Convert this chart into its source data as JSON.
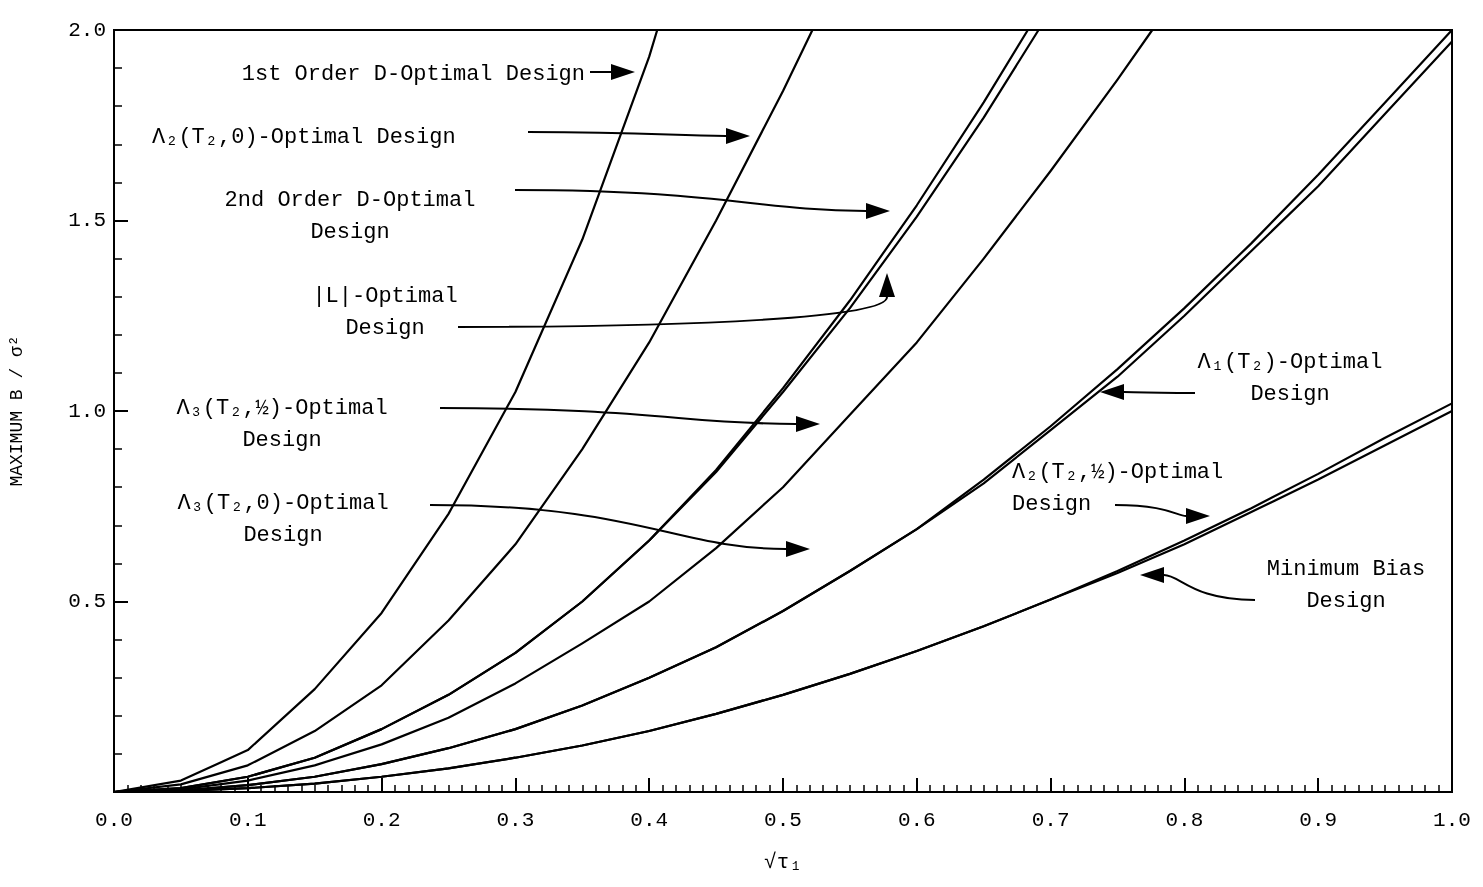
{
  "chart_data": {
    "type": "line",
    "xlabel": "√τ₁",
    "ylabel": "MAXIMUM B / σ²",
    "xlim": [
      0,
      1
    ],
    "ylim": [
      0,
      2
    ],
    "xticks": [
      {
        "value": 0,
        "label": "0.0"
      },
      0.1,
      0.2,
      0.3,
      0.4,
      0.5,
      0.6,
      0.7,
      0.8,
      0.9,
      {
        "value": 1,
        "label": "1.0"
      }
    ],
    "yticks": [
      {
        "value": 0,
        "label": null
      },
      0.5,
      {
        "value": 1,
        "label": "1.0"
      },
      1.5,
      {
        "value": 2,
        "label": "2.0"
      }
    ],
    "marker": "none",
    "line_style": "solid",
    "series": [
      {
        "color": "#000000",
        "x": [
          0,
          0.05,
          0.1,
          0.15,
          0.2,
          0.25,
          0.3,
          0.35,
          0.4,
          0.406
        ],
        "values": [
          0,
          0.03,
          0.11,
          0.27,
          0.47,
          0.73,
          1.05,
          1.45,
          1.93,
          2.0
        ]
      },
      {
        "color": "#000000",
        "x": [
          0,
          0.05,
          0.1,
          0.15,
          0.2,
          0.25,
          0.3,
          0.35,
          0.4,
          0.45,
          0.5,
          0.522
        ],
        "values": [
          0,
          0.02,
          0.07,
          0.16,
          0.28,
          0.45,
          0.65,
          0.9,
          1.18,
          1.5,
          1.84,
          2.0
        ]
      },
      {
        "color": "#000000",
        "x": [
          0,
          0.05,
          0.1,
          0.15,
          0.2,
          0.25,
          0.3,
          0.35,
          0.4,
          0.45,
          0.5,
          0.55,
          0.6,
          0.65,
          0.683
        ],
        "values": [
          0,
          0.01,
          0.04,
          0.09,
          0.165,
          0.255,
          0.365,
          0.5,
          0.66,
          0.845,
          1.06,
          1.29,
          1.54,
          1.81,
          2.0
        ]
      },
      {
        "color": "#000000",
        "x": [
          0,
          0.05,
          0.1,
          0.15,
          0.2,
          0.25,
          0.3,
          0.35,
          0.4,
          0.45,
          0.5,
          0.55,
          0.6,
          0.65,
          0.691
        ],
        "values": [
          0,
          0.01,
          0.04,
          0.09,
          0.165,
          0.255,
          0.365,
          0.5,
          0.66,
          0.84,
          1.05,
          1.27,
          1.51,
          1.77,
          2.0
        ]
      },
      {
        "color": "#000000",
        "x": [
          0,
          0.05,
          0.1,
          0.15,
          0.2,
          0.25,
          0.3,
          0.35,
          0.4,
          0.45,
          0.5,
          0.55,
          0.6,
          0.65,
          0.7,
          0.75,
          0.776
        ],
        "values": [
          0,
          0.007,
          0.03,
          0.07,
          0.125,
          0.195,
          0.285,
          0.39,
          0.5,
          0.64,
          0.8,
          0.99,
          1.18,
          1.4,
          1.63,
          1.87,
          2.0
        ]
      },
      {
        "color": "#000000",
        "x": [
          0,
          0.05,
          0.1,
          0.15,
          0.2,
          0.25,
          0.3,
          0.35,
          0.4,
          0.45,
          0.5,
          0.55,
          0.6,
          0.65,
          0.7,
          0.75,
          0.8,
          0.85,
          0.9,
          0.95,
          1.0
        ],
        "values": [
          0,
          0.004,
          0.018,
          0.04,
          0.073,
          0.115,
          0.165,
          0.227,
          0.3,
          0.38,
          0.475,
          0.58,
          0.69,
          0.82,
          0.96,
          1.11,
          1.27,
          1.44,
          1.62,
          1.81,
          2.0
        ]
      },
      {
        "color": "#000000",
        "x": [
          0,
          0.05,
          0.1,
          0.15,
          0.2,
          0.25,
          0.3,
          0.35,
          0.4,
          0.45,
          0.5,
          0.55,
          0.6,
          0.65,
          0.7,
          0.75,
          0.8,
          0.85,
          0.9,
          0.95,
          1.0
        ],
        "values": [
          0,
          0.004,
          0.018,
          0.04,
          0.073,
          0.115,
          0.165,
          0.227,
          0.3,
          0.38,
          0.475,
          0.58,
          0.69,
          0.81,
          0.95,
          1.09,
          1.25,
          1.42,
          1.59,
          1.78,
          1.97
        ]
      },
      {
        "color": "#000000",
        "x": [
          0,
          0.05,
          0.1,
          0.15,
          0.2,
          0.25,
          0.3,
          0.35,
          0.4,
          0.45,
          0.5,
          0.55,
          0.6,
          0.65,
          0.7,
          0.75,
          0.8,
          0.85,
          0.9,
          0.95,
          1.0
        ],
        "values": [
          0,
          0.003,
          0.01,
          0.022,
          0.04,
          0.062,
          0.09,
          0.122,
          0.16,
          0.205,
          0.255,
          0.31,
          0.37,
          0.435,
          0.505,
          0.58,
          0.66,
          0.745,
          0.835,
          0.93,
          1.02
        ]
      },
      {
        "color": "#000000",
        "x": [
          0,
          0.05,
          0.1,
          0.15,
          0.2,
          0.25,
          0.3,
          0.35,
          0.4,
          0.45,
          0.5,
          0.55,
          0.6,
          0.65,
          0.7,
          0.75,
          0.8,
          0.85,
          0.9,
          0.95,
          1.0
        ],
        "values": [
          0,
          0.003,
          0.01,
          0.022,
          0.04,
          0.062,
          0.09,
          0.122,
          0.16,
          0.205,
          0.255,
          0.31,
          0.37,
          0.435,
          0.505,
          0.575,
          0.65,
          0.735,
          0.82,
          0.91,
          1.0
        ]
      }
    ],
    "annotations": [
      "1st Order D-Optimal Design",
      "Λ₂(T₂,0)-Optimal Design",
      "2nd Order D-Optimal\nDesign",
      "|L|-Optimal\nDesign",
      "Λ₃(T₂,½)-Optimal\nDesign",
      "Λ₃(T₂,0)-Optimal\nDesign",
      "Λ₁(T₂)-Optimal\nDesign",
      "Λ₂(T₂,½)-Optimal\nDesign",
      "Minimum Bias\nDesign"
    ]
  }
}
